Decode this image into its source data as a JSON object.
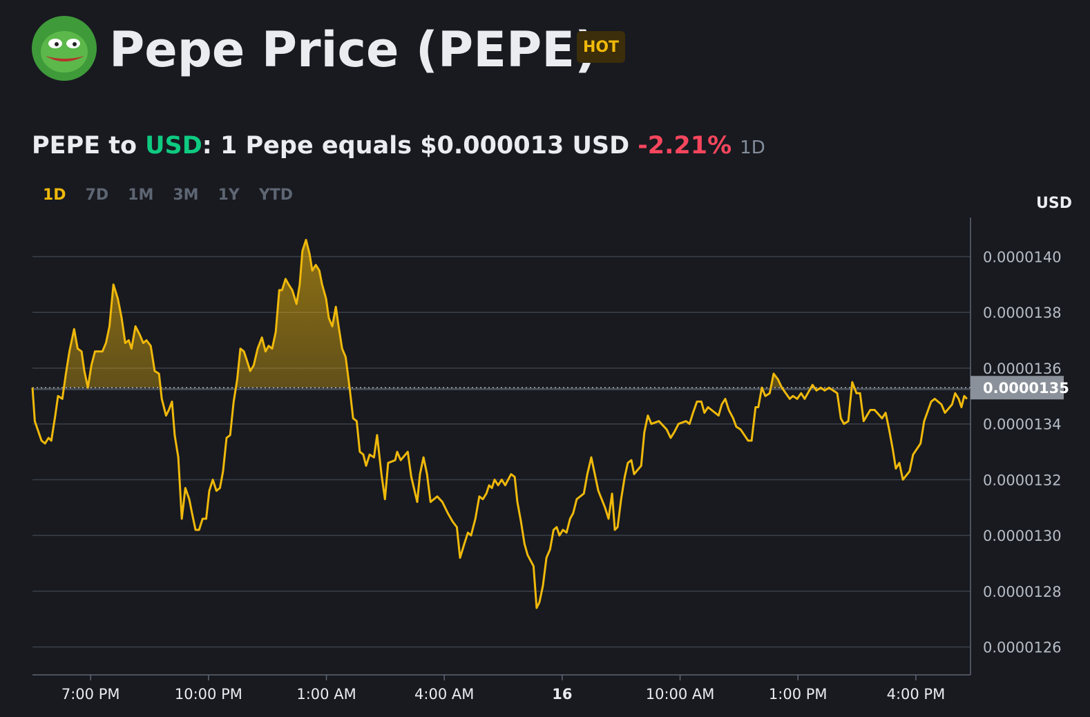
{
  "header": {
    "title": "Pepe Price (PEPE)",
    "badge": "HOT"
  },
  "conversion": {
    "prefix": "PEPE to",
    "quote": "USD",
    "text": ": 1 Pepe equals $0.000013 USD",
    "change": "-2.21%",
    "period": "1D"
  },
  "ranges": [
    "1D",
    "7D",
    "1M",
    "3M",
    "1Y",
    "YTD"
  ],
  "chart_data": {
    "type": "line",
    "y_axis_label": "USD",
    "color": "#f0b90b",
    "grid": true,
    "xlim": [
      17.52,
      41.39
    ],
    "ylim": [
      1.25e-05,
      1.414e-05
    ],
    "xticks": [
      {
        "value": 19,
        "label": "7:00 PM"
      },
      {
        "value": 22,
        "label": "10:00 PM"
      },
      {
        "value": 25,
        "label": "1:00 AM"
      },
      {
        "value": 28,
        "label": "4:00 AM"
      },
      {
        "value": 31,
        "label": "16"
      },
      {
        "value": 34,
        "label": "10:00 AM"
      },
      {
        "value": 37,
        "label": "1:00 PM"
      },
      {
        "value": 40,
        "label": "4:00 PM"
      }
    ],
    "yticks": [
      {
        "value": 1.26e-05,
        "label": "0.0000126"
      },
      {
        "value": 1.28e-05,
        "label": "0.0000128"
      },
      {
        "value": 1.3e-05,
        "label": "0.0000130"
      },
      {
        "value": 1.32e-05,
        "label": "0.0000132"
      },
      {
        "value": 1.34e-05,
        "label": "0.0000134"
      },
      {
        "value": 1.36e-05,
        "label": "0.0000136"
      },
      {
        "value": 1.38e-05,
        "label": "0.0000138"
      },
      {
        "value": 1.4e-05,
        "label": "0.0000140"
      }
    ],
    "current_price": {
      "value": 1.353e-05,
      "label": "0.0000135"
    },
    "x": [
      17.52,
      17.58,
      17.75,
      17.84,
      17.93,
      18.0,
      18.1,
      18.17,
      18.28,
      18.37,
      18.46,
      18.58,
      18.67,
      18.77,
      18.84,
      18.93,
      19.02,
      19.11,
      19.3,
      19.39,
      19.48,
      19.58,
      19.69,
      19.79,
      19.88,
      19.97,
      20.04,
      20.14,
      20.25,
      20.34,
      20.42,
      20.53,
      20.63,
      20.74,
      20.81,
      20.92,
      20.99,
      21.07,
      21.14,
      21.23,
      21.32,
      21.41,
      21.51,
      21.58,
      21.67,
      21.76,
      21.85,
      21.94,
      22.02,
      22.11,
      22.2,
      22.29,
      22.37,
      22.46,
      22.55,
      22.64,
      22.73,
      22.81,
      22.9,
      22.97,
      23.06,
      23.15,
      23.25,
      23.36,
      23.45,
      23.53,
      23.62,
      23.71,
      23.8,
      23.87,
      23.96,
      24.04,
      24.13,
      24.24,
      24.32,
      24.39,
      24.48,
      24.57,
      24.64,
      24.73,
      24.82,
      24.89,
      24.99,
      25.06,
      25.15,
      25.24,
      25.31,
      25.4,
      25.49,
      25.59,
      25.68,
      25.77,
      25.85,
      25.94,
      26.01,
      26.1,
      26.21,
      26.29,
      26.4,
      26.49,
      26.57,
      26.75,
      26.8,
      26.89,
      27.07,
      27.16,
      27.31,
      27.38,
      27.47,
      27.56,
      27.65,
      27.82,
      27.95,
      28.09,
      28.21,
      28.32,
      28.4,
      28.51,
      28.6,
      28.68,
      28.79,
      28.89,
      28.98,
      29.07,
      29.14,
      29.21,
      29.28,
      29.37,
      29.46,
      29.55,
      29.7,
      29.79,
      29.86,
      29.95,
      30.04,
      30.12,
      30.27,
      30.35,
      30.42,
      30.51,
      30.6,
      30.69,
      30.78,
      30.86,
      30.93,
      31.02,
      31.11,
      31.2,
      31.28,
      31.37,
      31.55,
      31.64,
      31.74,
      31.83,
      31.92,
      32.09,
      32.18,
      32.27,
      32.34,
      32.41,
      32.5,
      32.59,
      32.67,
      32.76,
      32.83,
      33.01,
      33.09,
      33.18,
      33.27,
      33.46,
      33.66,
      33.76,
      33.85,
      33.96,
      34.15,
      34.24,
      34.33,
      34.43,
      34.54,
      34.62,
      34.71,
      34.89,
      34.98,
      35.06,
      35.15,
      35.24,
      35.35,
      35.43,
      35.54,
      35.73,
      35.82,
      35.92,
      35.99,
      36.08,
      36.17,
      36.28,
      36.38,
      36.49,
      36.59,
      36.79,
      36.87,
      36.98,
      37.08,
      37.17,
      37.37,
      37.47,
      37.58,
      37.68,
      37.79,
      38.0,
      38.09,
      38.17,
      38.28,
      38.38,
      38.49,
      38.58,
      38.67,
      38.84,
      38.95,
      39.14,
      39.23,
      39.32,
      39.41,
      39.49,
      39.58,
      39.67,
      39.84,
      39.93,
      40.12,
      40.21,
      40.39,
      40.48,
      40.65,
      40.74,
      40.92,
      41.0,
      41.09,
      41.16,
      41.23,
      41.3
    ],
    "values": [
      1.353e-05,
      1.341e-05,
      1.334e-05,
      1.333e-05,
      1.335e-05,
      1.334e-05,
      1.343e-05,
      1.35e-05,
      1.349e-05,
      1.358e-05,
      1.366e-05,
      1.374e-05,
      1.367e-05,
      1.366e-05,
      1.359e-05,
      1.353e-05,
      1.361e-05,
      1.366e-05,
      1.366e-05,
      1.369e-05,
      1.375e-05,
      1.39e-05,
      1.385e-05,
      1.378e-05,
      1.369e-05,
      1.37e-05,
      1.367e-05,
      1.375e-05,
      1.372e-05,
      1.369e-05,
      1.37e-05,
      1.368e-05,
      1.359e-05,
      1.358e-05,
      1.349e-05,
      1.343e-05,
      1.345e-05,
      1.348e-05,
      1.336e-05,
      1.328e-05,
      1.306e-05,
      1.317e-05,
      1.313e-05,
      1.308e-05,
      1.302e-05,
      1.302e-05,
      1.306e-05,
      1.306e-05,
      1.316e-05,
      1.32e-05,
      1.316e-05,
      1.317e-05,
      1.323e-05,
      1.335e-05,
      1.336e-05,
      1.348e-05,
      1.356e-05,
      1.367e-05,
      1.366e-05,
      1.363e-05,
      1.359e-05,
      1.361e-05,
      1.367e-05,
      1.371e-05,
      1.366e-05,
      1.368e-05,
      1.367e-05,
      1.373e-05,
      1.388e-05,
      1.388e-05,
      1.392e-05,
      1.39e-05,
      1.388e-05,
      1.383e-05,
      1.39e-05,
      1.402e-05,
      1.406e-05,
      1.401e-05,
      1.395e-05,
      1.397e-05,
      1.395e-05,
      1.39e-05,
      1.385e-05,
      1.378e-05,
      1.375e-05,
      1.382e-05,
      1.375e-05,
      1.367e-05,
      1.364e-05,
      1.353e-05,
      1.342e-05,
      1.341e-05,
      1.33e-05,
      1.329e-05,
      1.325e-05,
      1.329e-05,
      1.328e-05,
      1.336e-05,
      1.322e-05,
      1.313e-05,
      1.326e-05,
      1.327e-05,
      1.33e-05,
      1.327e-05,
      1.33e-05,
      1.321e-05,
      1.312e-05,
      1.322e-05,
      1.328e-05,
      1.322e-05,
      1.312e-05,
      1.314e-05,
      1.312e-05,
      1.308e-05,
      1.305e-05,
      1.303e-05,
      1.292e-05,
      1.297e-05,
      1.301e-05,
      1.3e-05,
      1.306e-05,
      1.314e-05,
      1.313e-05,
      1.315e-05,
      1.318e-05,
      1.317e-05,
      1.32e-05,
      1.318e-05,
      1.32e-05,
      1.318e-05,
      1.322e-05,
      1.321e-05,
      1.312e-05,
      1.305e-05,
      1.297e-05,
      1.293e-05,
      1.289e-05,
      1.274e-05,
      1.276e-05,
      1.282e-05,
      1.292e-05,
      1.295e-05,
      1.302e-05,
      1.303e-05,
      1.3e-05,
      1.302e-05,
      1.301e-05,
      1.306e-05,
      1.308e-05,
      1.313e-05,
      1.315e-05,
      1.322e-05,
      1.328e-05,
      1.322e-05,
      1.316e-05,
      1.31e-05,
      1.306e-05,
      1.315e-05,
      1.302e-05,
      1.303e-05,
      1.313e-05,
      1.321e-05,
      1.326e-05,
      1.327e-05,
      1.322e-05,
      1.325e-05,
      1.337e-05,
      1.343e-05,
      1.34e-05,
      1.341e-05,
      1.338e-05,
      1.335e-05,
      1.337e-05,
      1.34e-05,
      1.341e-05,
      1.34e-05,
      1.344e-05,
      1.348e-05,
      1.348e-05,
      1.344e-05,
      1.346e-05,
      1.344e-05,
      1.343e-05,
      1.347e-05,
      1.349e-05,
      1.345e-05,
      1.342e-05,
      1.339e-05,
      1.338e-05,
      1.334e-05,
      1.334e-05,
      1.346e-05,
      1.346e-05,
      1.353e-05,
      1.35e-05,
      1.351e-05,
      1.358e-05,
      1.356e-05,
      1.353e-05,
      1.349e-05,
      1.35e-05,
      1.349e-05,
      1.351e-05,
      1.349e-05,
      1.354e-05,
      1.352e-05,
      1.353e-05,
      1.352e-05,
      1.353e-05,
      1.351e-05,
      1.342e-05,
      1.34e-05,
      1.341e-05,
      1.355e-05,
      1.351e-05,
      1.351e-05,
      1.341e-05,
      1.345e-05,
      1.345e-05,
      1.342e-05,
      1.344e-05,
      1.338e-05,
      1.331e-05,
      1.324e-05,
      1.326e-05,
      1.32e-05,
      1.323e-05,
      1.329e-05,
      1.333e-05,
      1.341e-05,
      1.348e-05,
      1.349e-05,
      1.347e-05,
      1.344e-05,
      1.347e-05,
      1.351e-05,
      1.349e-05,
      1.346e-05,
      1.35e-05,
      1.349e-05
    ]
  }
}
